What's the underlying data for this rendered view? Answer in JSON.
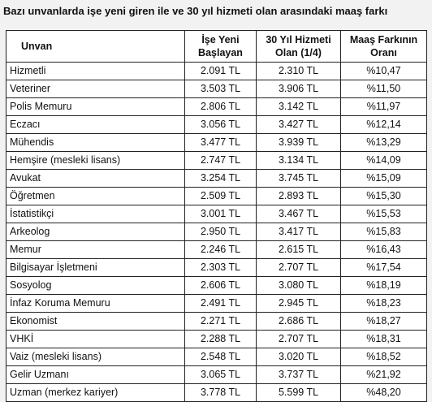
{
  "title": "Bazı unvanlarda işe yeni giren ile ve 30 yıl hizmeti olan arasındaki maaş farkı",
  "headers": {
    "unvan": "Unvan",
    "new_line1": "İşe Yeni",
    "new_line2": "Başlayan",
    "y30_line1": "30 Yıl Hizmeti",
    "y30_line2": "Olan (1/4)",
    "diff_line1": "Maaş Farkının",
    "diff_line2": "Oranı"
  },
  "rows": [
    {
      "unvan": "Hizmetli",
      "new": "2.091 TL",
      "y30": "2.310 TL",
      "diff": "%10,47"
    },
    {
      "unvan": "Veteriner",
      "new": "3.503 TL",
      "y30": "3.906 TL",
      "diff": "%11,50"
    },
    {
      "unvan": "Polis Memuru",
      "new": "2.806 TL",
      "y30": "3.142 TL",
      "diff": "%11,97"
    },
    {
      "unvan": "Eczacı",
      "new": "3.056 TL",
      "y30": "3.427 TL",
      "diff": "%12,14"
    },
    {
      "unvan": "Mühendis",
      "new": "3.477 TL",
      "y30": "3.939 TL",
      "diff": "%13,29"
    },
    {
      "unvan": "Hemşire (mesleki lisans)",
      "new": "2.747 TL",
      "y30": "3.134 TL",
      "diff": "%14,09"
    },
    {
      "unvan": "Avukat",
      "new": "3.254 TL",
      "y30": "3.745 TL",
      "diff": "%15,09"
    },
    {
      "unvan": "Öğretmen",
      "new": "2.509 TL",
      "y30": "2.893 TL",
      "diff": "%15,30"
    },
    {
      "unvan": "İstatistikçi",
      "new": "3.001 TL",
      "y30": "3.467 TL",
      "diff": "%15,53"
    },
    {
      "unvan": "Arkeolog",
      "new": "2.950 TL",
      "y30": "3.417 TL",
      "diff": "%15,83"
    },
    {
      "unvan": "Memur",
      "new": "2.246 TL",
      "y30": "2.615 TL",
      "diff": "%16,43"
    },
    {
      "unvan": "Bilgisayar İşletmeni",
      "new": "2.303 TL",
      "y30": "2.707 TL",
      "diff": "%17,54"
    },
    {
      "unvan": "Sosyolog",
      "new": "2.606 TL",
      "y30": "3.080 TL",
      "diff": "%18,19"
    },
    {
      "unvan": "İnfaz Koruma Memuru",
      "new": "2.491 TL",
      "y30": "2.945 TL",
      "diff": "%18,23"
    },
    {
      "unvan": "Ekonomist",
      "new": "2.271 TL",
      "y30": "2.686 TL",
      "diff": "%18,27"
    },
    {
      "unvan": "VHKİ",
      "new": "2.288 TL",
      "y30": "2.707 TL",
      "diff": "%18,31"
    },
    {
      "unvan": "Vaiz (mesleki lisans)",
      "new": "2.548 TL",
      "y30": "3.020 TL",
      "diff": "%18,52"
    },
    {
      "unvan": "Gelir Uzmanı",
      "new": "3.065 TL",
      "y30": "3.737 TL",
      "diff": "%21,92"
    },
    {
      "unvan": "Uzman (merkez kariyer)",
      "new": "3.778 TL",
      "y30": "5.599 TL",
      "diff": "%48,20"
    }
  ]
}
